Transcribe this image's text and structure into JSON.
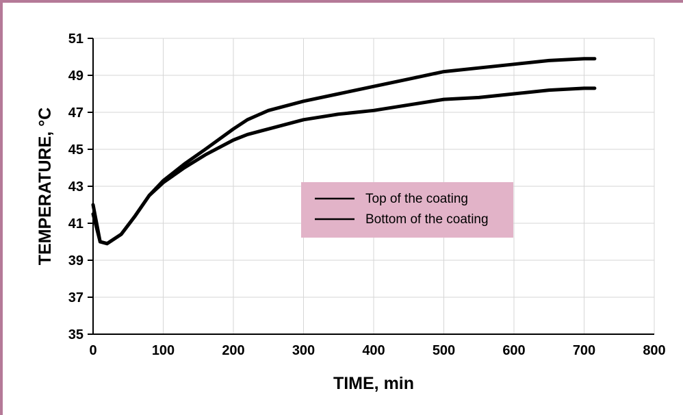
{
  "chart_data": {
    "type": "line",
    "xlabel": "TIME, min",
    "ylabel": "TEMPERATURE, °C",
    "xlim": [
      0,
      800
    ],
    "ylim": [
      35,
      51
    ],
    "x_ticks": [
      "0",
      "100",
      "200",
      "300",
      "400",
      "500",
      "600",
      "700",
      "800"
    ],
    "y_ticks": [
      "35",
      "37",
      "39",
      "41",
      "43",
      "45",
      "47",
      "49",
      "51"
    ],
    "grid": true,
    "legend_position": "center-right",
    "legend_background": "#e2b3c8",
    "frame_color": "#b57a98",
    "series": [
      {
        "name": "Top of the coating",
        "color": "#000000",
        "x": [
          0,
          10,
          20,
          40,
          60,
          80,
          100,
          130,
          160,
          200,
          220,
          250,
          300,
          350,
          400,
          450,
          500,
          550,
          600,
          650,
          700,
          715
        ],
        "y": [
          42.0,
          40.0,
          39.9,
          40.4,
          41.4,
          42.5,
          43.3,
          44.2,
          45.0,
          46.1,
          46.6,
          47.1,
          47.6,
          48.0,
          48.4,
          48.8,
          49.2,
          49.4,
          49.6,
          49.8,
          49.9,
          49.9
        ]
      },
      {
        "name": "Bottom of the coating",
        "color": "#000000",
        "x": [
          0,
          10,
          20,
          40,
          60,
          80,
          100,
          130,
          160,
          200,
          220,
          250,
          300,
          350,
          400,
          450,
          500,
          550,
          600,
          650,
          700,
          715
        ],
        "y": [
          41.5,
          40.0,
          39.9,
          40.4,
          41.4,
          42.5,
          43.2,
          44.0,
          44.7,
          45.5,
          45.8,
          46.1,
          46.6,
          46.9,
          47.1,
          47.4,
          47.7,
          47.8,
          48.0,
          48.2,
          48.3,
          48.3
        ]
      }
    ]
  }
}
